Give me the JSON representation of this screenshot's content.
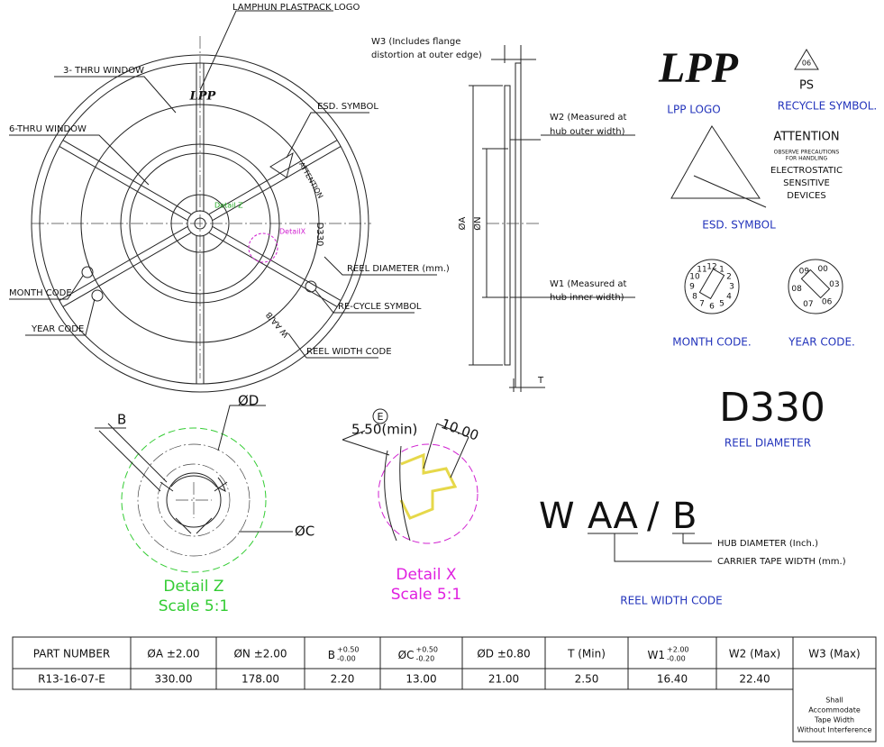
{
  "reel_view": {
    "logo_label": "LAMPHUN PLASTPACK LOGO",
    "three_window": "3- THRU WINDOW",
    "six_window": "6-THRU WINDOW",
    "esd_label": "ESD. SYMBOL",
    "month_label": "MONTH CODE",
    "year_label": "YEAR CODE",
    "diameter_label": "REEL DIAMETER (mm.)",
    "recycle_label": "RE-CYCLE SYMBOL",
    "width_code_label": "REEL WIDTH CODE",
    "logo": "LPP",
    "detail_z": "Detail Z",
    "detail_x": "DetailX",
    "diameter_mark": "D330",
    "width_mark": "W AA/B",
    "attention": "ATTENTION"
  },
  "side_view": {
    "w3": [
      "W3 (Includes flange",
      "distortion at outer edge)"
    ],
    "w2": [
      "W2 (Measured at",
      "hub outer width)"
    ],
    "w1": [
      "W1 (Measured at",
      "hub inner width)"
    ],
    "a": "ØA",
    "n": "ØN",
    "t": "T"
  },
  "legend": {
    "logo": "LPP",
    "logo_caption": "LPP LOGO",
    "recycle_code": "06",
    "recycle_material": "PS",
    "recycle_caption": "RECYCLE SYMBOL.",
    "attention": "ATTENTION",
    "precautions": [
      "OBSERVE PRECAUTIONS",
      "FOR HANDLING"
    ],
    "esd_text": [
      "ELECTROSTATIC",
      "SENSITIVE",
      "DEVICES"
    ],
    "esd_caption": "ESD. SYMBOL",
    "month_dial": [
      "1",
      "2",
      "3",
      "4",
      "5",
      "6",
      "7",
      "8",
      "9",
      "10",
      "11",
      "12"
    ],
    "year_dial": [
      "00",
      "03",
      "06",
      "07",
      "08",
      "09"
    ],
    "month_caption": "MONTH CODE.",
    "year_caption": "YEAR CODE.",
    "diameter_code": "D330",
    "diameter_caption": "REEL DIAMETER"
  },
  "detail_z": {
    "b": "B",
    "d": "ØD",
    "c": "ØC",
    "title": "Detail Z",
    "scale": "Scale 5:1"
  },
  "detail_x": {
    "e": "E",
    "min": "5.50(min)",
    "width": "10.00",
    "title": "Detail X",
    "scale": "Scale 5:1"
  },
  "width_code": {
    "w": "W",
    "aa": "AA",
    "slash": "/",
    "b": "B",
    "hub": "HUB DIAMETER (Inch.)",
    "tape": "CARRIER TAPE WIDTH (mm.)",
    "caption": "REEL WIDTH CODE"
  },
  "table": {
    "header": [
      "PART NUMBER",
      "ØA ±2.00",
      "ØN ±2.00",
      {
        "label": "B",
        "plus": "+0.50",
        "minus": "-0.00"
      },
      {
        "label": "ØC",
        "plus": "+0.50",
        "minus": "-0.20"
      },
      "ØD ±0.80",
      "T (Min)",
      {
        "label": "W1",
        "plus": "+2.00",
        "minus": "-0.00"
      },
      "W2 (Max)",
      "W3 (Max)"
    ],
    "rows": [
      [
        "R13-16-07-E",
        "330.00",
        "178.00",
        "2.20",
        "13.00",
        "21.00",
        "2.50",
        "16.40",
        "22.40",
        [
          "Shall",
          "Accommodate",
          "Tape Width",
          "Without Interference"
        ]
      ]
    ]
  }
}
